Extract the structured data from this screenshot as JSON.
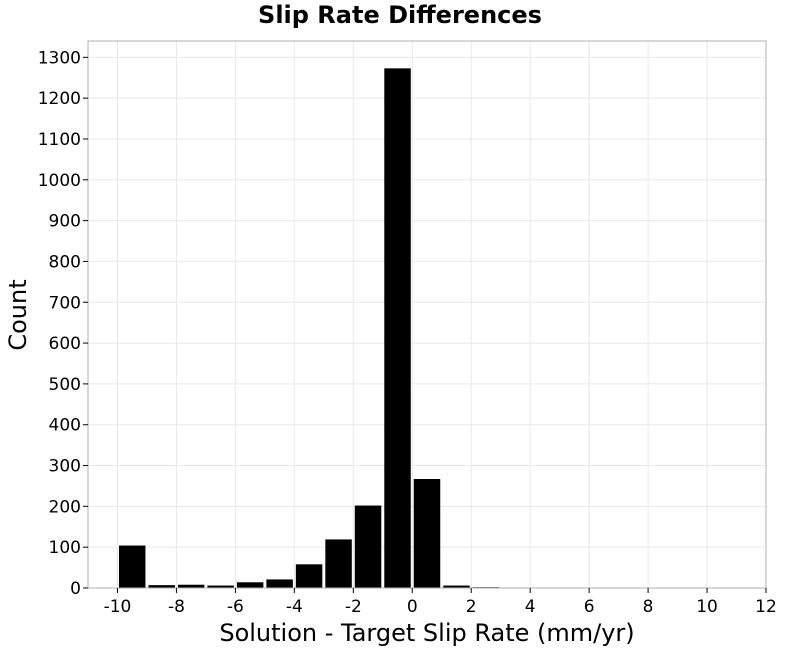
{
  "chart_data": {
    "type": "bar",
    "title": "Slip Rate Differences",
    "xlabel": "Solution - Target Slip Rate (mm/yr)",
    "ylabel": "Count",
    "xlim": [
      -11,
      12
    ],
    "ylim": [
      0,
      1340
    ],
    "xticks": [
      -10,
      -8,
      -6,
      -4,
      -2,
      0,
      2,
      4,
      6,
      8,
      10,
      12
    ],
    "yticks": [
      0,
      100,
      200,
      300,
      400,
      500,
      600,
      700,
      800,
      900,
      1000,
      1100,
      1200,
      1300
    ],
    "bin_width": 1,
    "x": [
      -9.5,
      -8.5,
      -7.5,
      -6.5,
      -5.5,
      -4.5,
      -3.5,
      -2.5,
      -1.5,
      -0.5,
      0.5,
      1.5,
      2.5,
      3.5,
      4.5
    ],
    "values": [
      104,
      7,
      8,
      6,
      14,
      21,
      58,
      119,
      202,
      1273,
      267,
      6,
      2,
      0,
      1
    ],
    "grid": true,
    "bar_color": "#000000"
  }
}
